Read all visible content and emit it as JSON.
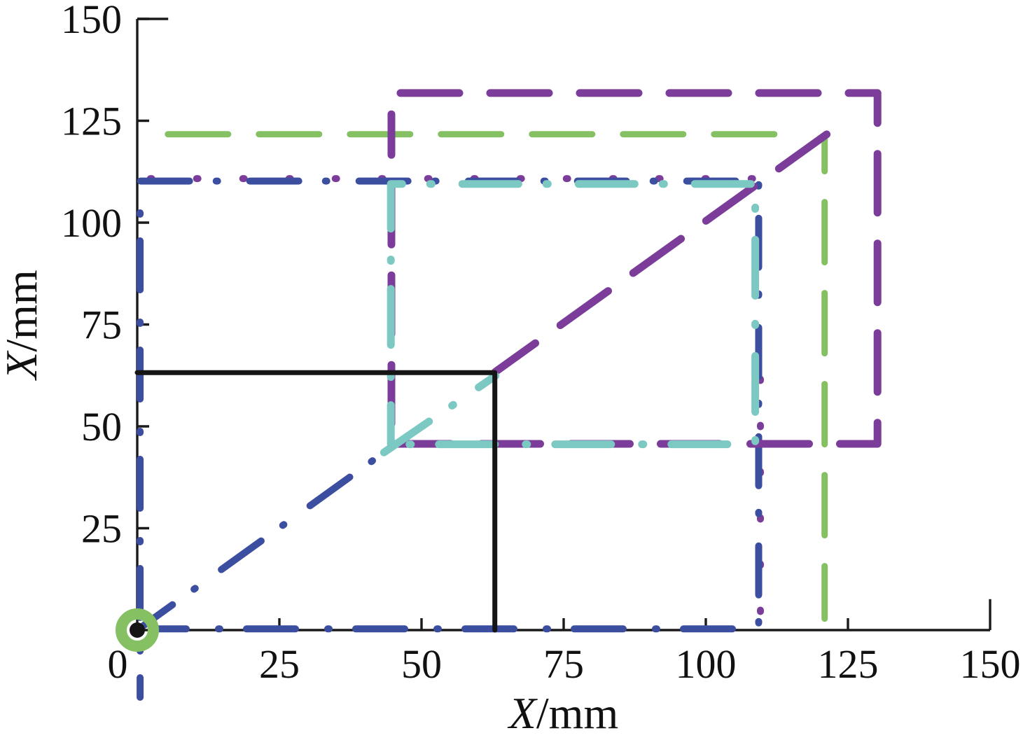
{
  "figure": {
    "background": "#ffffff"
  },
  "chart_data": {
    "type": "line",
    "title": "",
    "xlabel": "X/mm",
    "ylabel": "X/mm",
    "xlim": [
      0,
      150
    ],
    "ylim": [
      0,
      150
    ],
    "grid": false,
    "legend_position": "none",
    "axis_color": "#1a1a1a",
    "x_ticks": [
      {
        "value": 0,
        "label": "0"
      },
      {
        "value": 25,
        "label": "25"
      },
      {
        "value": 50,
        "label": "50"
      },
      {
        "value": 75,
        "label": "75"
      },
      {
        "value": 100,
        "label": "100"
      },
      {
        "value": 125,
        "label": "125"
      },
      {
        "value": 150,
        "label": "150"
      }
    ],
    "y_ticks": [
      {
        "value": 25,
        "label": "25"
      },
      {
        "value": 50,
        "label": "50"
      },
      {
        "value": 75,
        "label": "75"
      },
      {
        "value": 100,
        "label": "100"
      },
      {
        "value": 125,
        "label": "125"
      },
      {
        "value": 150,
        "label": "150"
      }
    ],
    "origin_marker": {
      "x": 0,
      "y": 0,
      "ring_color": "#85C063",
      "dot_color": "#151515"
    },
    "series": [
      {
        "name": "purple-dotted-top",
        "color": "#7B3D99",
        "width": 10,
        "dash": [
          2,
          64
        ],
        "offset": 0,
        "points": [
          [
            2.3,
            110.8
          ],
          [
            110,
            110.8
          ]
        ]
      },
      {
        "name": "purple-dotted-right",
        "color": "#7B3D99",
        "width": 10,
        "dash": [
          2,
          64
        ],
        "offset": 20,
        "points": [
          [
            109.6,
            69.5
          ],
          [
            109.6,
            0.7
          ]
        ]
      },
      {
        "name": "navy-square-loop",
        "color": "#3C4E9F",
        "width": 10,
        "dash": [
          70,
          38,
          2,
          46
        ],
        "offset": 42,
        "points": [
          [
            0.5,
            -16.5
          ],
          [
            0.5,
            110.2
          ],
          [
            109.3,
            110.2
          ],
          [
            109.3,
            0.3
          ],
          [
            3.5,
            0.3
          ]
        ]
      },
      {
        "name": "navy-diagonal",
        "color": "#3C4E9F",
        "width": 10,
        "dash": [
          70,
          38,
          2,
          46
        ],
        "offset": 8,
        "points": [
          [
            0,
            0
          ],
          [
            44,
            44.2
          ]
        ]
      },
      {
        "name": "green-square-top",
        "color": "#85C063",
        "width": 9,
        "dash": [
          86,
          44
        ],
        "offset": 0,
        "points": [
          [
            5.4,
            121.7
          ],
          [
            112.6,
            121.7
          ]
        ]
      },
      {
        "name": "green-square-right",
        "color": "#85C063",
        "width": 9,
        "dash": [
          86,
          44
        ],
        "offset": 36,
        "points": [
          [
            120.9,
            121.2
          ],
          [
            120.9,
            2.8
          ]
        ]
      },
      {
        "name": "purple-big-rect",
        "color": "#7B3D99",
        "width": 11,
        "dash": [
          84,
          44
        ],
        "offset": 0,
        "points": [
          [
            46.3,
            131.8
          ],
          [
            130.2,
            131.8
          ],
          [
            130.2,
            45.7
          ],
          [
            44.3,
            45.7
          ]
        ]
      },
      {
        "name": "purple-left-vertical",
        "color": "#7B3D99",
        "width": 11,
        "dash": [
          84,
          44
        ],
        "offset": 26,
        "points": [
          [
            44.7,
            126.6
          ],
          [
            44.7,
            48.8
          ]
        ]
      },
      {
        "name": "purple-diagonal",
        "color": "#7B3D99",
        "width": 11,
        "dash": [
          84,
          44
        ],
        "offset": 14,
        "points": [
          [
            63,
            63.4
          ],
          [
            124.3,
            124.7
          ]
        ]
      },
      {
        "name": "cyan-square-loop",
        "color": "#7CC8C3",
        "width": 11,
        "dash": [
          80,
          40,
          2,
          44
        ],
        "offset": 24,
        "points": [
          [
            44.6,
            45.6
          ],
          [
            44.6,
            109.5
          ],
          [
            108.7,
            109.5
          ],
          [
            108.7,
            45.6
          ],
          [
            45,
            45.6
          ]
        ]
      },
      {
        "name": "cyan-diagonal",
        "color": "#7CC8C3",
        "width": 11,
        "dash": [
          80,
          40,
          2,
          44
        ],
        "offset": 2,
        "points": [
          [
            43.4,
            43.6
          ],
          [
            63,
            62.4
          ]
        ]
      },
      {
        "name": "black-step-path",
        "color": "#151515",
        "width": 7,
        "dash": null,
        "offset": 0,
        "points": [
          [
            0,
            63.2
          ],
          [
            62.9,
            63.2
          ],
          [
            62.9,
            0
          ]
        ]
      }
    ]
  }
}
